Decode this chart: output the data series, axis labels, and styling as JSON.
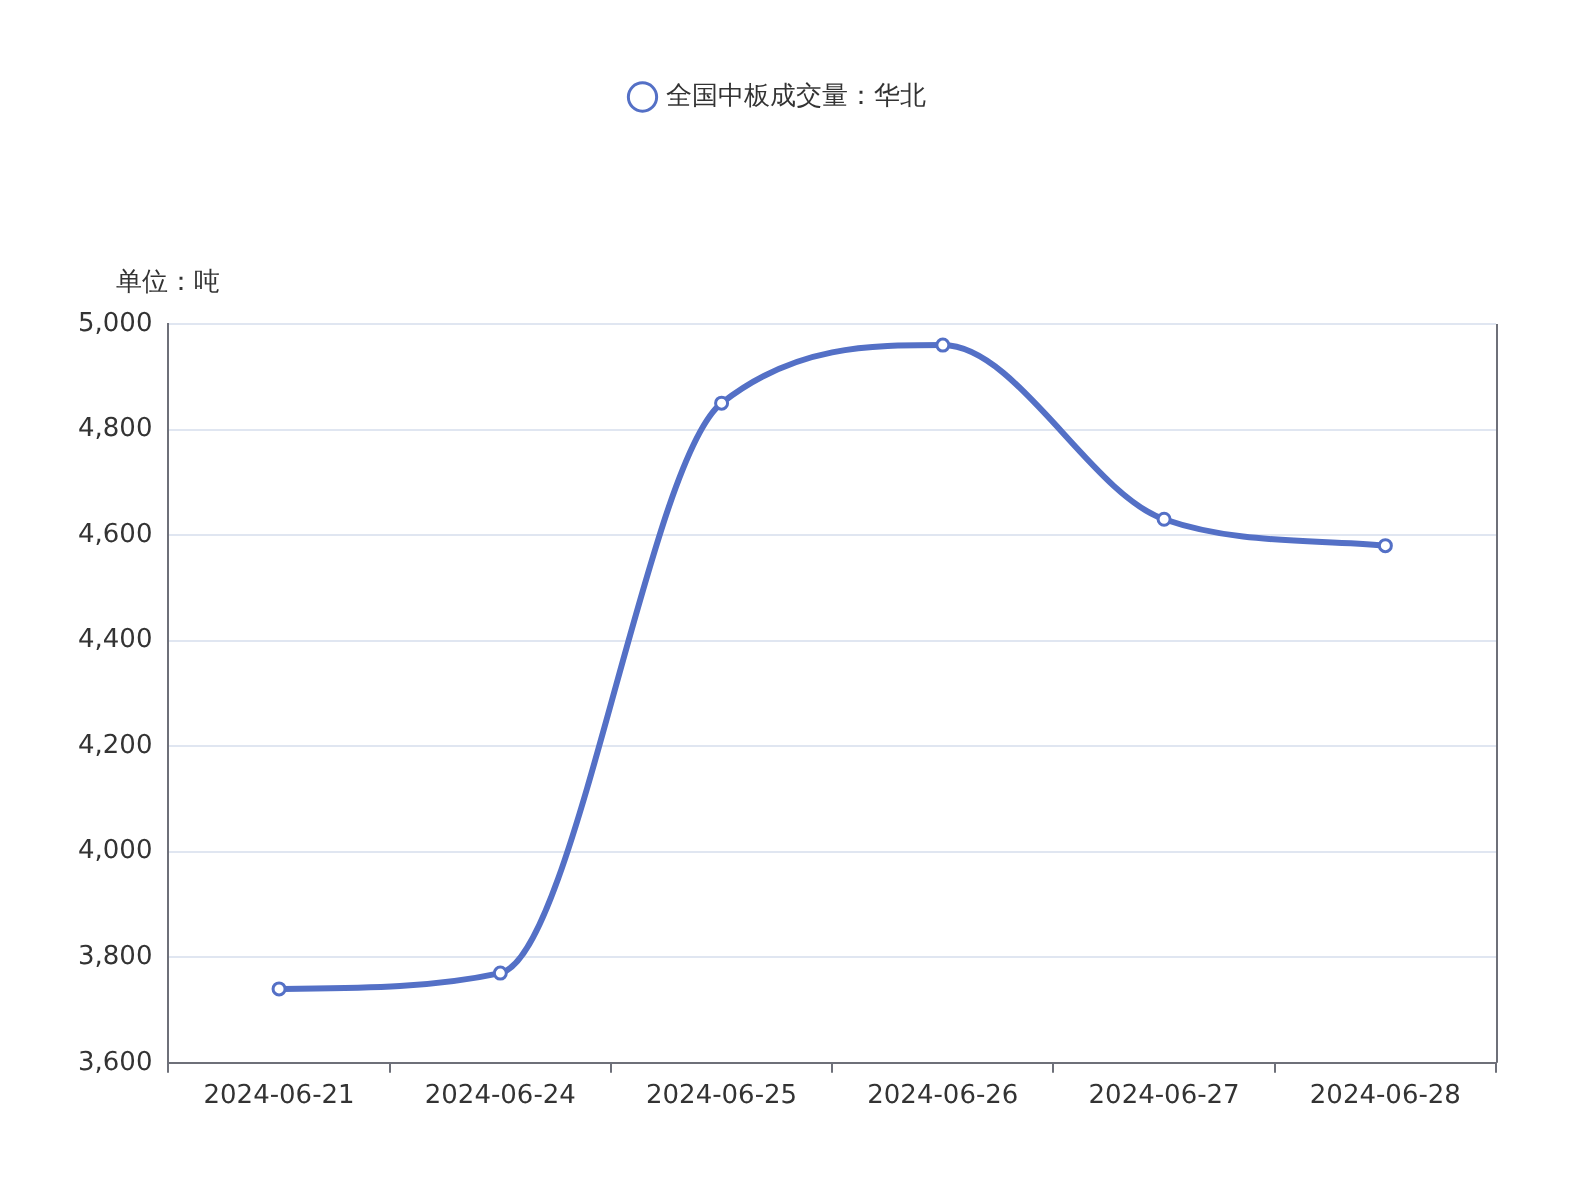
{
  "chart_data": {
    "type": "line",
    "ylabel": "单位：吨",
    "categories": [
      "2024-06-21",
      "2024-06-24",
      "2024-06-25",
      "2024-06-26",
      "2024-06-27",
      "2024-06-28"
    ],
    "series": [
      {
        "name": "全国中板成交量：华北",
        "color": "#5470c6",
        "values": [
          3740,
          3770,
          4850,
          4960,
          4630,
          4580
        ]
      }
    ],
    "ylim": [
      3600,
      5000
    ],
    "yticks": [
      {
        "value": 3600,
        "label": "3,600"
      },
      {
        "value": 3800,
        "label": "3,800"
      },
      {
        "value": 4000,
        "label": "4,000"
      },
      {
        "value": 4200,
        "label": "4,200"
      },
      {
        "value": 4400,
        "label": "4,400"
      },
      {
        "value": 4600,
        "label": "4,600"
      },
      {
        "value": 4800,
        "label": "4,800"
      },
      {
        "value": 5000,
        "label": "5,000"
      }
    ],
    "grid": "y",
    "legend": "top",
    "marker": "circle"
  }
}
